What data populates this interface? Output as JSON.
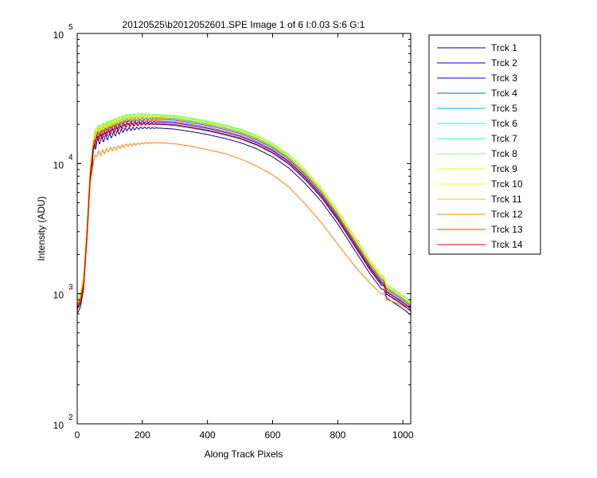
{
  "chart_data": {
    "type": "line",
    "title": "20120525\\b2012052601.SPE  Image 1 of 6  I:0.03  S:6  G:1",
    "xlabel": "Along Track Pixels",
    "ylabel": "Intensity (ADU)",
    "xlim": [
      0,
      1024
    ],
    "ylim": [
      100,
      100000
    ],
    "yscale": "log",
    "x_ticks": [
      0,
      200,
      400,
      600,
      800,
      1000
    ],
    "x_tick_labels": [
      "0",
      "200",
      "400",
      "600",
      "800",
      "1000"
    ],
    "y_ticks": [
      {
        "value": 100,
        "base": "10",
        "exp": "2"
      },
      {
        "value": 1000,
        "base": "10",
        "exp": "3"
      },
      {
        "value": 10000,
        "base": "10",
        "exp": "4"
      },
      {
        "value": 100000,
        "base": "10",
        "exp": "5"
      }
    ],
    "grid": false,
    "legend_position": "outside-right",
    "x": [
      0,
      10,
      20,
      30,
      40,
      50,
      60,
      80,
      100,
      150,
      200,
      250,
      300,
      350,
      400,
      450,
      500,
      550,
      600,
      650,
      700,
      750,
      800,
      850,
      900,
      940,
      950,
      980,
      1000,
      1024
    ],
    "series": [
      {
        "name": "Trck 1",
        "color": "#00008f",
        "scale": 0.88,
        "ripple": 0.06,
        "values": [
          800,
          900,
          1250,
          3000,
          8500,
          14000,
          16500,
          17500,
          18500,
          20800,
          21400,
          21300,
          20900,
          20000,
          19000,
          17800,
          16500,
          14800,
          12800,
          10500,
          8000,
          5800,
          3900,
          2500,
          1600,
          1180,
          1050,
          940,
          870,
          780
        ]
      },
      {
        "name": "Trck 2",
        "color": "#0000bf",
        "scale": 0.95,
        "ripple": 0.06,
        "values": [
          800,
          900,
          1250,
          3000,
          8500,
          14000,
          16500,
          17500,
          18500,
          20800,
          21400,
          21300,
          20900,
          20000,
          19000,
          17800,
          16500,
          14800,
          12800,
          10500,
          8000,
          5800,
          3900,
          2500,
          1600,
          1180,
          1050,
          940,
          870,
          780
        ]
      },
      {
        "name": "Trck 3",
        "color": "#0000ff",
        "scale": 0.98,
        "ripple": 0.06,
        "values": [
          800,
          900,
          1250,
          3000,
          8500,
          14000,
          16500,
          17500,
          18500,
          20800,
          21400,
          21300,
          20900,
          20000,
          19000,
          17800,
          16500,
          14800,
          12800,
          10500,
          8000,
          5800,
          3900,
          2500,
          1600,
          1180,
          1050,
          940,
          870,
          780
        ]
      },
      {
        "name": "Trck 4",
        "color": "#0060ff",
        "scale": 1.03,
        "ripple": 0.06,
        "values": [
          800,
          900,
          1250,
          3000,
          8500,
          14000,
          16500,
          17500,
          18500,
          20800,
          21400,
          21300,
          20900,
          20000,
          19000,
          17800,
          16500,
          14800,
          12800,
          10500,
          8000,
          5800,
          3900,
          2500,
          1600,
          1180,
          1050,
          940,
          870,
          780
        ]
      },
      {
        "name": "Trck 5",
        "color": "#00afff",
        "scale": 1.06,
        "ripple": 0.06,
        "values": [
          800,
          900,
          1250,
          3000,
          8500,
          14000,
          16500,
          17500,
          18500,
          20800,
          21400,
          21300,
          20900,
          20000,
          19000,
          17800,
          16500,
          14800,
          12800,
          10500,
          8000,
          5800,
          3900,
          2500,
          1600,
          1180,
          1050,
          940,
          870,
          780
        ]
      },
      {
        "name": "Trck 6",
        "color": "#00ffff",
        "scale": 1.09,
        "ripple": 0.06,
        "values": [
          800,
          900,
          1250,
          3000,
          8500,
          14000,
          16500,
          17500,
          18500,
          20800,
          21400,
          21300,
          20900,
          20000,
          19000,
          17800,
          16500,
          14800,
          12800,
          10500,
          8000,
          5800,
          3900,
          2500,
          1600,
          1180,
          1050,
          940,
          870,
          780
        ]
      },
      {
        "name": "Trck 7",
        "color": "#30ff9f",
        "scale": 1.11,
        "ripple": 0.06,
        "values": [
          800,
          900,
          1250,
          3000,
          8500,
          14000,
          16500,
          17500,
          18500,
          20800,
          21400,
          21300,
          20900,
          20000,
          19000,
          17800,
          16500,
          14800,
          12800,
          10500,
          8000,
          5800,
          3900,
          2500,
          1600,
          1180,
          1050,
          940,
          870,
          780
        ]
      },
      {
        "name": "Trck 8",
        "color": "#80ff80",
        "scale": 1.12,
        "ripple": 0.06,
        "values": [
          800,
          900,
          1250,
          3000,
          8500,
          14000,
          16500,
          17500,
          18500,
          20800,
          21400,
          21300,
          20900,
          20000,
          19000,
          17800,
          16500,
          14800,
          12800,
          10500,
          8000,
          5800,
          3900,
          2500,
          1600,
          1180,
          1050,
          940,
          870,
          780
        ]
      },
      {
        "name": "Trck 9",
        "color": "#dfff20",
        "scale": 1.1,
        "ripple": 0.06,
        "values": [
          800,
          900,
          1250,
          3000,
          8500,
          14000,
          16500,
          17500,
          18500,
          20800,
          21400,
          21300,
          20900,
          20000,
          19000,
          17800,
          16500,
          14800,
          12800,
          10500,
          8000,
          5800,
          3900,
          2500,
          1600,
          1180,
          1050,
          940,
          870,
          780
        ]
      },
      {
        "name": "Trck 10",
        "color": "#ffff00",
        "scale": 1.08,
        "ripple": 0.06,
        "values": [
          800,
          900,
          1250,
          3000,
          8500,
          14000,
          16500,
          17500,
          18500,
          20800,
          21400,
          21300,
          20900,
          20000,
          19000,
          17800,
          16500,
          14800,
          12800,
          10500,
          8000,
          5800,
          3900,
          2500,
          1600,
          1180,
          1050,
          940,
          870,
          780
        ]
      },
      {
        "name": "Trck 11",
        "color": "#ffbf00",
        "scale": 1.05,
        "ripple": 0.06,
        "values": [
          800,
          900,
          1250,
          3000,
          8500,
          14000,
          16500,
          17500,
          18500,
          20800,
          21400,
          21300,
          20900,
          20000,
          19000,
          17800,
          16500,
          14800,
          12800,
          10500,
          8000,
          5800,
          3900,
          2500,
          1600,
          1180,
          1050,
          940,
          870,
          780
        ]
      },
      {
        "name": "Trck 12",
        "color": "#ff8000",
        "scale": 1.0,
        "ripple": 0.05,
        "values": [
          800,
          880,
          1150,
          2600,
          7000,
          10500,
          11800,
          12300,
          12800,
          13800,
          14300,
          14500,
          14200,
          13600,
          12800,
          12000,
          10900,
          9600,
          8200,
          6600,
          4900,
          3500,
          2400,
          1650,
          1200,
          960,
          900,
          850,
          800,
          760
        ]
      },
      {
        "name": "Trck 13",
        "color": "#ff4000",
        "scale": 1.0,
        "ripple": 0.06,
        "values": [
          800,
          900,
          1250,
          3000,
          8500,
          14000,
          16500,
          17500,
          18500,
          20800,
          21400,
          21300,
          20900,
          20000,
          19000,
          17800,
          16500,
          14800,
          12800,
          10500,
          8000,
          5800,
          3900,
          2500,
          1600,
          1180,
          1050,
          940,
          870,
          780
        ]
      },
      {
        "name": "Trck 14",
        "color": "#df0000",
        "scale": 0.94,
        "ripple": 0.06,
        "values": [
          800,
          900,
          1250,
          3000,
          8500,
          14000,
          16500,
          17500,
          18500,
          20800,
          21400,
          21300,
          20900,
          20000,
          19000,
          17800,
          16500,
          14800,
          12800,
          10500,
          8000,
          5800,
          3900,
          2500,
          1600,
          1180,
          1050,
          940,
          870,
          780
        ]
      }
    ]
  }
}
